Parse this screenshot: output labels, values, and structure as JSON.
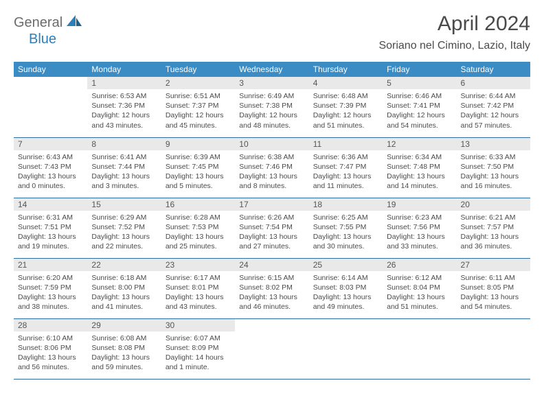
{
  "brand": {
    "general": "General",
    "blue": "Blue"
  },
  "header": {
    "month": "April 2024",
    "location": "Soriano nel Cimino, Lazio, Italy"
  },
  "colors": {
    "header_bg": "#3b8bc4",
    "header_text": "#ffffff",
    "cell_border": "#2c6ea3",
    "daynum_bg": "#e9e9e9",
    "text": "#4a4a4a",
    "brand_gray": "#6b6b6b",
    "brand_blue": "#2c7fb8"
  },
  "weekdays": [
    "Sunday",
    "Monday",
    "Tuesday",
    "Wednesday",
    "Thursday",
    "Friday",
    "Saturday"
  ],
  "start_weekday": 1,
  "days": [
    {
      "n": 1,
      "sunrise": "6:53 AM",
      "sunset": "7:36 PM",
      "daylight": "12 hours and 43 minutes."
    },
    {
      "n": 2,
      "sunrise": "6:51 AM",
      "sunset": "7:37 PM",
      "daylight": "12 hours and 45 minutes."
    },
    {
      "n": 3,
      "sunrise": "6:49 AM",
      "sunset": "7:38 PM",
      "daylight": "12 hours and 48 minutes."
    },
    {
      "n": 4,
      "sunrise": "6:48 AM",
      "sunset": "7:39 PM",
      "daylight": "12 hours and 51 minutes."
    },
    {
      "n": 5,
      "sunrise": "6:46 AM",
      "sunset": "7:41 PM",
      "daylight": "12 hours and 54 minutes."
    },
    {
      "n": 6,
      "sunrise": "6:44 AM",
      "sunset": "7:42 PM",
      "daylight": "12 hours and 57 minutes."
    },
    {
      "n": 7,
      "sunrise": "6:43 AM",
      "sunset": "7:43 PM",
      "daylight": "13 hours and 0 minutes."
    },
    {
      "n": 8,
      "sunrise": "6:41 AM",
      "sunset": "7:44 PM",
      "daylight": "13 hours and 3 minutes."
    },
    {
      "n": 9,
      "sunrise": "6:39 AM",
      "sunset": "7:45 PM",
      "daylight": "13 hours and 5 minutes."
    },
    {
      "n": 10,
      "sunrise": "6:38 AM",
      "sunset": "7:46 PM",
      "daylight": "13 hours and 8 minutes."
    },
    {
      "n": 11,
      "sunrise": "6:36 AM",
      "sunset": "7:47 PM",
      "daylight": "13 hours and 11 minutes."
    },
    {
      "n": 12,
      "sunrise": "6:34 AM",
      "sunset": "7:48 PM",
      "daylight": "13 hours and 14 minutes."
    },
    {
      "n": 13,
      "sunrise": "6:33 AM",
      "sunset": "7:50 PM",
      "daylight": "13 hours and 16 minutes."
    },
    {
      "n": 14,
      "sunrise": "6:31 AM",
      "sunset": "7:51 PM",
      "daylight": "13 hours and 19 minutes."
    },
    {
      "n": 15,
      "sunrise": "6:29 AM",
      "sunset": "7:52 PM",
      "daylight": "13 hours and 22 minutes."
    },
    {
      "n": 16,
      "sunrise": "6:28 AM",
      "sunset": "7:53 PM",
      "daylight": "13 hours and 25 minutes."
    },
    {
      "n": 17,
      "sunrise": "6:26 AM",
      "sunset": "7:54 PM",
      "daylight": "13 hours and 27 minutes."
    },
    {
      "n": 18,
      "sunrise": "6:25 AM",
      "sunset": "7:55 PM",
      "daylight": "13 hours and 30 minutes."
    },
    {
      "n": 19,
      "sunrise": "6:23 AM",
      "sunset": "7:56 PM",
      "daylight": "13 hours and 33 minutes."
    },
    {
      "n": 20,
      "sunrise": "6:21 AM",
      "sunset": "7:57 PM",
      "daylight": "13 hours and 36 minutes."
    },
    {
      "n": 21,
      "sunrise": "6:20 AM",
      "sunset": "7:59 PM",
      "daylight": "13 hours and 38 minutes."
    },
    {
      "n": 22,
      "sunrise": "6:18 AM",
      "sunset": "8:00 PM",
      "daylight": "13 hours and 41 minutes."
    },
    {
      "n": 23,
      "sunrise": "6:17 AM",
      "sunset": "8:01 PM",
      "daylight": "13 hours and 43 minutes."
    },
    {
      "n": 24,
      "sunrise": "6:15 AM",
      "sunset": "8:02 PM",
      "daylight": "13 hours and 46 minutes."
    },
    {
      "n": 25,
      "sunrise": "6:14 AM",
      "sunset": "8:03 PM",
      "daylight": "13 hours and 49 minutes."
    },
    {
      "n": 26,
      "sunrise": "6:12 AM",
      "sunset": "8:04 PM",
      "daylight": "13 hours and 51 minutes."
    },
    {
      "n": 27,
      "sunrise": "6:11 AM",
      "sunset": "8:05 PM",
      "daylight": "13 hours and 54 minutes."
    },
    {
      "n": 28,
      "sunrise": "6:10 AM",
      "sunset": "8:06 PM",
      "daylight": "13 hours and 56 minutes."
    },
    {
      "n": 29,
      "sunrise": "6:08 AM",
      "sunset": "8:08 PM",
      "daylight": "13 hours and 59 minutes."
    },
    {
      "n": 30,
      "sunrise": "6:07 AM",
      "sunset": "8:09 PM",
      "daylight": "14 hours and 1 minute."
    }
  ],
  "labels": {
    "sunrise": "Sunrise:",
    "sunset": "Sunset:",
    "daylight": "Daylight:"
  }
}
